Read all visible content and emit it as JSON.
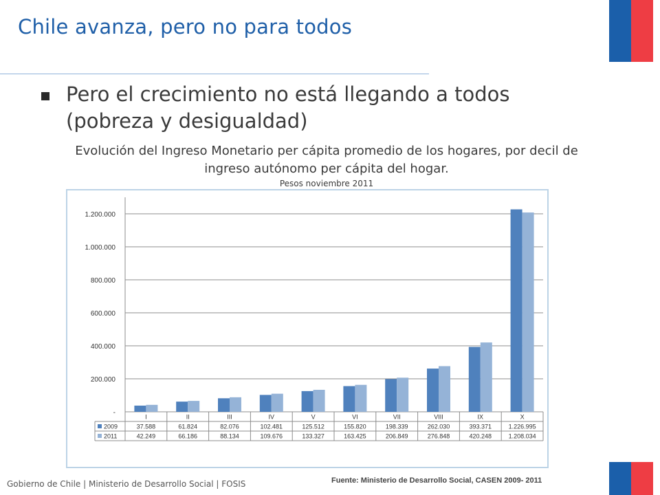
{
  "header": {
    "title": "Chile avanza, pero no para todos"
  },
  "bullet": {
    "text": "Pero el crecimiento no está llegando a todos (pobreza y desigualdad)"
  },
  "chart_caption": {
    "line1": "Evolución del Ingreso Monetario per cápita promedio de los hogares, por decil de ingreso autónomo per cápita del hogar.",
    "units": "Pesos noviembre 2011"
  },
  "footer": {
    "left": "Gobierno de Chile | Ministerio de Desarrollo Social | FOSIS",
    "source": "Fuente: Ministerio de Desarrollo Social, CASEN 2009- 2011"
  },
  "colors": {
    "accent": "#1f5fa8",
    "flag_blue": "#1b5faa",
    "flag_red": "#ee3d44",
    "series_2009": "#4f81bd",
    "series_2011": "#95b3d7"
  },
  "chart_data": {
    "type": "bar",
    "categories": [
      "I",
      "II",
      "III",
      "IV",
      "V",
      "VI",
      "VII",
      "VIII",
      "IX",
      "X"
    ],
    "series": [
      {
        "name": "2009",
        "values": [
          37588,
          61824,
          82076,
          102481,
          125512,
          155820,
          198339,
          262030,
          393371,
          1226995
        ],
        "labels": [
          "37.588",
          "61.824",
          "82.076",
          "102.481",
          "125.512",
          "155.820",
          "198.339",
          "262.030",
          "393.371",
          "1.226.995"
        ]
      },
      {
        "name": "2011",
        "values": [
          42249,
          66186,
          88134,
          109676,
          133327,
          163425,
          206849,
          276848,
          420248,
          1208034
        ],
        "labels": [
          "42.249",
          "66.186",
          "88.134",
          "109.676",
          "133.327",
          "163.425",
          "206.849",
          "276.848",
          "420.248",
          "1.208.034"
        ]
      }
    ],
    "yticks": [
      0,
      200000,
      400000,
      600000,
      800000,
      1000000,
      1200000
    ],
    "ytick_labels": [
      "-",
      "200.000",
      "400.000",
      "600.000",
      "800.000",
      "1.000.000",
      "1.200.000"
    ],
    "ylim": [
      0,
      1300000
    ],
    "grid": true,
    "legend": "data-table"
  }
}
